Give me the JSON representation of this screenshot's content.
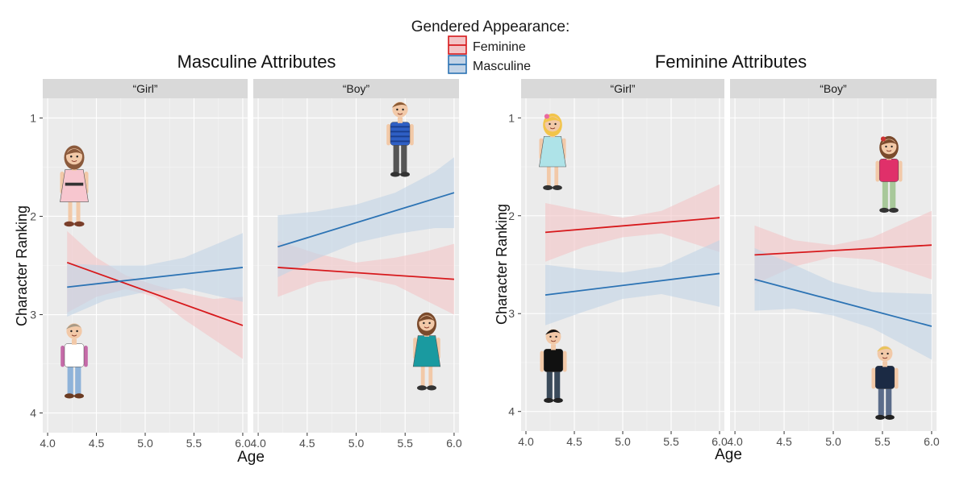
{
  "legend": {
    "title": "Gendered Appearance:",
    "entries": [
      {
        "label": "Feminine",
        "color": "#d7191c",
        "fill": "#f3c4c6"
      },
      {
        "label": "Masculine",
        "color": "#2c73b4",
        "fill": "#c2d3e6"
      }
    ]
  },
  "chart_data": [
    {
      "type": "line",
      "title": "Masculine Attributes",
      "xlabel": "Age",
      "ylabel": "Character Ranking",
      "xlim": [
        3.95,
        6.05
      ],
      "ylim": [
        4.2,
        0.8
      ],
      "y_reversed": true,
      "xticks": [
        4.0,
        4.5,
        5.0,
        5.5,
        6.0
      ],
      "xtick_labels": [
        "4.0",
        "4.5",
        "5.0",
        "5.5",
        "6.0"
      ],
      "yticks": [
        1,
        2,
        3,
        4
      ],
      "ytick_labels": [
        "1",
        "2",
        "3",
        "4"
      ],
      "facets": [
        {
          "label": "“Girl”",
          "series": [
            {
              "name": "Feminine",
              "x": [
                4.2,
                6.0
              ],
              "y": [
                2.47,
                3.11
              ],
              "band_x": [
                4.2,
                4.5,
                4.8,
                5.1,
                5.4,
                5.7,
                6.0
              ],
              "band_lo": [
                2.15,
                2.42,
                2.6,
                2.7,
                2.78,
                2.84,
                2.82
              ],
              "band_hi": [
                2.98,
                2.82,
                2.74,
                2.82,
                3.05,
                3.25,
                3.45
              ]
            },
            {
              "name": "Masculine",
              "x": [
                4.2,
                6.0
              ],
              "y": [
                2.72,
                2.52
              ],
              "band_x": [
                4.2,
                4.6,
                5.0,
                5.4,
                6.0
              ],
              "band_lo": [
                2.48,
                2.5,
                2.5,
                2.42,
                2.17
              ],
              "band_hi": [
                3.02,
                2.85,
                2.77,
                2.73,
                2.87
              ]
            }
          ]
        },
        {
          "label": "“Boy”",
          "series": [
            {
              "name": "Feminine",
              "x": [
                4.2,
                6.0
              ],
              "y": [
                2.52,
                2.64
              ],
              "band_x": [
                4.2,
                4.6,
                5.0,
                5.4,
                5.7,
                6.0
              ],
              "band_lo": [
                2.25,
                2.38,
                2.47,
                2.42,
                2.36,
                2.28
              ],
              "band_hi": [
                2.82,
                2.67,
                2.62,
                2.7,
                2.85,
                3.0
              ]
            },
            {
              "name": "Masculine",
              "x": [
                4.2,
                6.0
              ],
              "y": [
                2.31,
                1.76
              ],
              "band_x": [
                4.2,
                4.6,
                5.0,
                5.4,
                5.8,
                6.0
              ],
              "band_lo": [
                1.99,
                1.95,
                1.88,
                1.76,
                1.55,
                1.4
              ],
              "band_hi": [
                2.62,
                2.43,
                2.27,
                2.18,
                2.12,
                2.12
              ]
            }
          ]
        }
      ]
    },
    {
      "type": "line",
      "title": "Feminine Attributes",
      "xlabel": "Age",
      "ylabel": "Character Ranking",
      "xlim": [
        3.95,
        6.05
      ],
      "ylim": [
        4.2,
        0.8
      ],
      "y_reversed": true,
      "xticks": [
        4.0,
        4.5,
        5.0,
        5.5,
        6.0
      ],
      "xtick_labels": [
        "4.0",
        "4.5",
        "5.0",
        "5.5",
        "6.0"
      ],
      "yticks": [
        1,
        2,
        3,
        4
      ],
      "ytick_labels": [
        "1",
        "2",
        "3",
        "4"
      ],
      "facets": [
        {
          "label": "“Girl”",
          "series": [
            {
              "name": "Feminine",
              "x": [
                4.2,
                6.0
              ],
              "y": [
                2.17,
                2.02
              ],
              "band_x": [
                4.2,
                4.6,
                5.0,
                5.4,
                6.0
              ],
              "band_lo": [
                1.87,
                1.95,
                2.02,
                1.95,
                1.68
              ],
              "band_hi": [
                2.47,
                2.32,
                2.22,
                2.18,
                2.37
              ]
            },
            {
              "name": "Masculine",
              "x": [
                4.2,
                6.0
              ],
              "y": [
                2.81,
                2.59
              ],
              "band_x": [
                4.2,
                4.6,
                5.0,
                5.4,
                6.0
              ],
              "band_lo": [
                2.5,
                2.55,
                2.58,
                2.52,
                2.25
              ],
              "band_hi": [
                3.12,
                2.98,
                2.85,
                2.8,
                2.93
              ]
            }
          ]
        },
        {
          "label": "“Boy”",
          "series": [
            {
              "name": "Feminine",
              "x": [
                4.2,
                6.0
              ],
              "y": [
                2.4,
                2.3
              ],
              "band_x": [
                4.2,
                4.6,
                5.0,
                5.4,
                6.0
              ],
              "band_lo": [
                2.1,
                2.25,
                2.3,
                2.22,
                1.95
              ],
              "band_hi": [
                2.7,
                2.52,
                2.42,
                2.45,
                2.65
              ]
            },
            {
              "name": "Masculine",
              "x": [
                4.2,
                6.0
              ],
              "y": [
                2.65,
                3.13
              ],
              "band_x": [
                4.2,
                4.6,
                5.0,
                5.4,
                6.0
              ],
              "band_lo": [
                2.33,
                2.5,
                2.68,
                2.78,
                2.8
              ],
              "band_hi": [
                2.97,
                2.95,
                3.02,
                3.15,
                3.47
              ]
            }
          ]
        }
      ]
    }
  ]
}
